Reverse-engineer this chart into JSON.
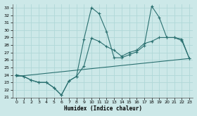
{
  "xlabel": "Humidex (Indice chaleur)",
  "xlim": [
    -0.5,
    23.5
  ],
  "ylim": [
    21,
    33.5
  ],
  "yticks": [
    21,
    22,
    23,
    24,
    25,
    26,
    27,
    28,
    29,
    30,
    31,
    32,
    33
  ],
  "xticks": [
    0,
    1,
    2,
    3,
    4,
    5,
    6,
    7,
    8,
    9,
    10,
    11,
    12,
    13,
    14,
    15,
    16,
    17,
    18,
    19,
    20,
    21,
    22,
    23
  ],
  "bg_color": "#cce8e8",
  "grid_color": "#b0d8d8",
  "line_color": "#2a7070",
  "line1_x": [
    0,
    1,
    2,
    3,
    4,
    5,
    6,
    7,
    8,
    9,
    10,
    11,
    12,
    13,
    14,
    15,
    16,
    17,
    18,
    19,
    20,
    21,
    22,
    23
  ],
  "line1_y": [
    24.0,
    23.8,
    23.3,
    23.0,
    23.0,
    22.3,
    21.3,
    23.2,
    23.8,
    28.8,
    33.0,
    32.2,
    29.8,
    26.3,
    26.3,
    26.7,
    27.1,
    27.9,
    33.2,
    31.7,
    29.0,
    29.0,
    28.6,
    26.2
  ],
  "line2_x": [
    0,
    1,
    2,
    3,
    4,
    5,
    6,
    7,
    8,
    9,
    10,
    11,
    12,
    13,
    14,
    15,
    16,
    17,
    18,
    19,
    20,
    21,
    22,
    23
  ],
  "line2_y": [
    24.0,
    23.8,
    23.3,
    23.0,
    23.0,
    22.3,
    21.3,
    23.2,
    23.8,
    25.2,
    28.9,
    28.5,
    27.8,
    27.3,
    26.5,
    27.0,
    27.3,
    28.2,
    28.5,
    29.0,
    29.0,
    29.0,
    28.8,
    26.2
  ],
  "line3_x": [
    0,
    23
  ],
  "line3_y": [
    23.8,
    26.2
  ]
}
